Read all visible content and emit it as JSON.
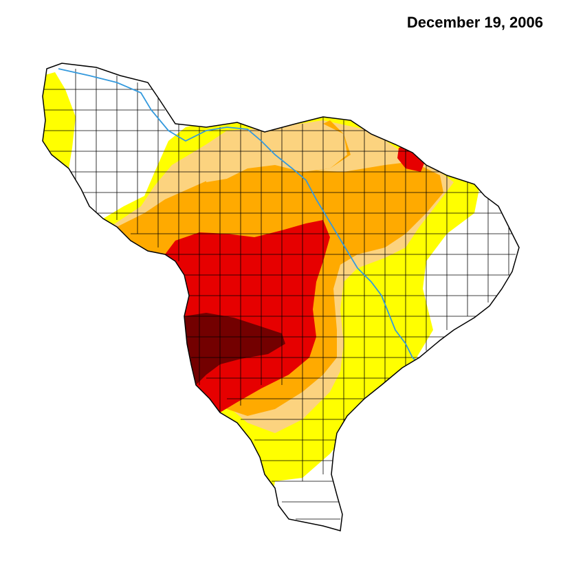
{
  "map": {
    "date_label": "December 19, 2006"
  },
  "colors": {
    "none": "#ffffff",
    "d0_abnormally_dry": "#ffff00",
    "d1_moderate": "#fcd37f",
    "d2_severe": "#ffaa00",
    "d3_extreme": "#e60000",
    "d4_exceptional": "#730000",
    "river": "#3399dd",
    "outline": "#000000"
  }
}
